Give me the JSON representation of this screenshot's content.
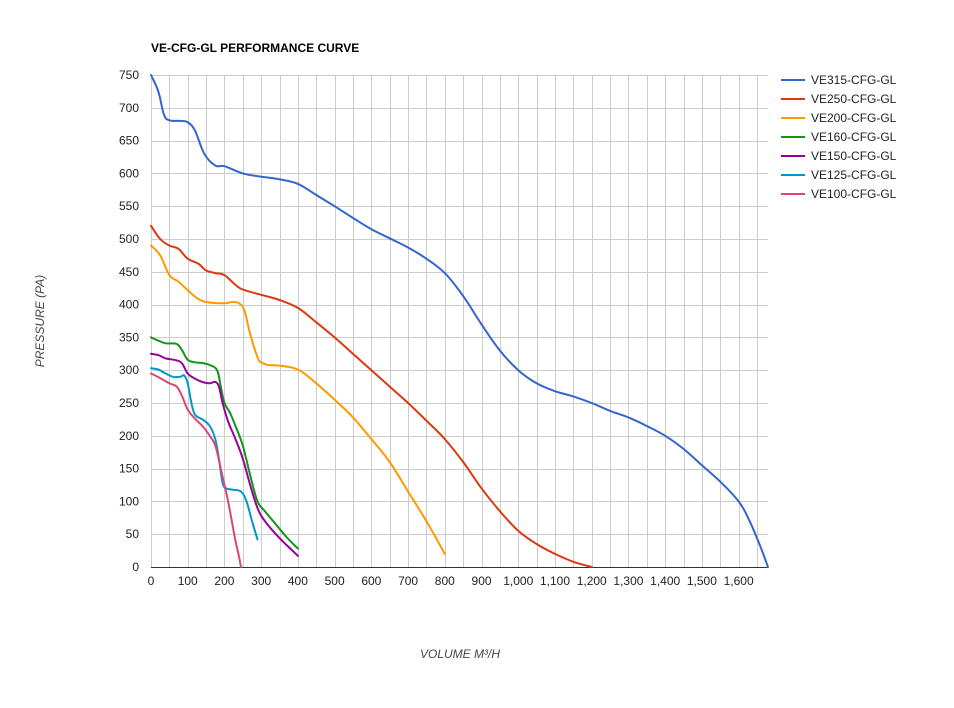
{
  "chart_data": {
    "type": "line",
    "title": "VE-CFG-GL PERFORMANCE CURVE",
    "xlabel": "VOLUME M³/H",
    "ylabel": "PRESSURE (PA)",
    "xlim": [
      0,
      1680
    ],
    "ylim": [
      0,
      750
    ],
    "x_ticks": [
      0,
      100,
      200,
      300,
      400,
      500,
      600,
      700,
      800,
      900,
      1000,
      1100,
      1200,
      1300,
      1400,
      1500,
      1600
    ],
    "x_tick_labels": [
      "0",
      "100",
      "200",
      "300",
      "400",
      "500",
      "600",
      "700",
      "800",
      "900",
      "1,000",
      "1,100",
      "1,200",
      "1,300",
      "1,400",
      "1,500",
      "1,600"
    ],
    "y_ticks": [
      0,
      50,
      100,
      150,
      200,
      250,
      300,
      350,
      400,
      450,
      500,
      550,
      600,
      650,
      700,
      750
    ],
    "y_tick_labels": [
      "0",
      "50",
      "100",
      "150",
      "200",
      "250",
      "300",
      "350",
      "400",
      "450",
      "500",
      "550",
      "600",
      "650",
      "700",
      "750"
    ],
    "grid": true,
    "legend_position": "right",
    "series": [
      {
        "name": "VE315-CFG-GL",
        "color": "#3366cc",
        "points": [
          [
            0,
            750
          ],
          [
            20,
            725
          ],
          [
            35,
            690
          ],
          [
            50,
            681
          ],
          [
            80,
            680
          ],
          [
            100,
            678
          ],
          [
            120,
            665
          ],
          [
            145,
            630
          ],
          [
            175,
            612
          ],
          [
            200,
            611
          ],
          [
            250,
            600
          ],
          [
            300,
            595
          ],
          [
            350,
            591
          ],
          [
            400,
            584
          ],
          [
            450,
            567
          ],
          [
            500,
            550
          ],
          [
            550,
            532
          ],
          [
            600,
            515
          ],
          [
            650,
            501
          ],
          [
            700,
            487
          ],
          [
            750,
            470
          ],
          [
            800,
            448
          ],
          [
            850,
            413
          ],
          [
            900,
            370
          ],
          [
            950,
            330
          ],
          [
            1000,
            300
          ],
          [
            1050,
            280
          ],
          [
            1100,
            268
          ],
          [
            1150,
            260
          ],
          [
            1200,
            250
          ],
          [
            1250,
            238
          ],
          [
            1300,
            228
          ],
          [
            1350,
            215
          ],
          [
            1400,
            200
          ],
          [
            1450,
            180
          ],
          [
            1500,
            155
          ],
          [
            1550,
            130
          ],
          [
            1600,
            100
          ],
          [
            1630,
            70
          ],
          [
            1660,
            30
          ],
          [
            1680,
            0
          ]
        ]
      },
      {
        "name": "VE250-CFG-GL",
        "color": "#dc3912",
        "points": [
          [
            0,
            520
          ],
          [
            25,
            500
          ],
          [
            50,
            490
          ],
          [
            75,
            485
          ],
          [
            100,
            470
          ],
          [
            130,
            462
          ],
          [
            150,
            452
          ],
          [
            175,
            448
          ],
          [
            200,
            445
          ],
          [
            230,
            430
          ],
          [
            250,
            423
          ],
          [
            300,
            415
          ],
          [
            350,
            407
          ],
          [
            400,
            395
          ],
          [
            450,
            373
          ],
          [
            500,
            350
          ],
          [
            550,
            325
          ],
          [
            600,
            300
          ],
          [
            650,
            275
          ],
          [
            700,
            250
          ],
          [
            750,
            223
          ],
          [
            800,
            195
          ],
          [
            850,
            160
          ],
          [
            900,
            120
          ],
          [
            950,
            85
          ],
          [
            1000,
            55
          ],
          [
            1050,
            35
          ],
          [
            1100,
            20
          ],
          [
            1150,
            8
          ],
          [
            1200,
            0
          ]
        ]
      },
      {
        "name": "VE200-CFG-GL",
        "color": "#ff9900",
        "points": [
          [
            0,
            490
          ],
          [
            25,
            475
          ],
          [
            50,
            445
          ],
          [
            75,
            435
          ],
          [
            100,
            422
          ],
          [
            125,
            410
          ],
          [
            150,
            404
          ],
          [
            200,
            402
          ],
          [
            220,
            404
          ],
          [
            240,
            402
          ],
          [
            255,
            390
          ],
          [
            270,
            355
          ],
          [
            290,
            320
          ],
          [
            300,
            312
          ],
          [
            320,
            308
          ],
          [
            350,
            307
          ],
          [
            400,
            301
          ],
          [
            450,
            280
          ],
          [
            500,
            255
          ],
          [
            550,
            228
          ],
          [
            600,
            195
          ],
          [
            650,
            160
          ],
          [
            700,
            115
          ],
          [
            750,
            70
          ],
          [
            800,
            20
          ]
        ]
      },
      {
        "name": "VE160-CFG-GL",
        "color": "#109618",
        "points": [
          [
            0,
            350
          ],
          [
            20,
            345
          ],
          [
            40,
            341
          ],
          [
            70,
            340
          ],
          [
            85,
            330
          ],
          [
            100,
            316
          ],
          [
            120,
            312
          ],
          [
            140,
            311
          ],
          [
            160,
            308
          ],
          [
            180,
            300
          ],
          [
            190,
            275
          ],
          [
            200,
            250
          ],
          [
            215,
            235
          ],
          [
            230,
            215
          ],
          [
            250,
            185
          ],
          [
            270,
            140
          ],
          [
            290,
            100
          ],
          [
            310,
            85
          ],
          [
            340,
            65
          ],
          [
            370,
            45
          ],
          [
            400,
            28
          ]
        ]
      },
      {
        "name": "VE150-CFG-GL",
        "color": "#990099",
        "points": [
          [
            0,
            325
          ],
          [
            20,
            323
          ],
          [
            40,
            318
          ],
          [
            70,
            315
          ],
          [
            85,
            310
          ],
          [
            100,
            295
          ],
          [
            120,
            287
          ],
          [
            140,
            282
          ],
          [
            160,
            280
          ],
          [
            175,
            282
          ],
          [
            185,
            275
          ],
          [
            195,
            250
          ],
          [
            210,
            222
          ],
          [
            230,
            195
          ],
          [
            250,
            165
          ],
          [
            270,
            125
          ],
          [
            290,
            90
          ],
          [
            310,
            70
          ],
          [
            340,
            50
          ],
          [
            370,
            33
          ],
          [
            400,
            17
          ]
        ]
      },
      {
        "name": "VE125-CFG-GL",
        "color": "#0099c6",
        "points": [
          [
            0,
            303
          ],
          [
            20,
            301
          ],
          [
            40,
            295
          ],
          [
            60,
            290
          ],
          [
            80,
            290
          ],
          [
            90,
            292
          ],
          [
            100,
            280
          ],
          [
            110,
            250
          ],
          [
            120,
            232
          ],
          [
            140,
            225
          ],
          [
            160,
            215
          ],
          [
            175,
            195
          ],
          [
            185,
            165
          ],
          [
            195,
            128
          ],
          [
            205,
            120
          ],
          [
            220,
            118
          ],
          [
            245,
            115
          ],
          [
            260,
            100
          ],
          [
            275,
            70
          ],
          [
            290,
            42
          ]
        ]
      },
      {
        "name": "VE100-CFG-GL",
        "color": "#dd4477",
        "points": [
          [
            0,
            295
          ],
          [
            25,
            288
          ],
          [
            50,
            280
          ],
          [
            70,
            275
          ],
          [
            85,
            260
          ],
          [
            100,
            240
          ],
          [
            120,
            226
          ],
          [
            140,
            215
          ],
          [
            160,
            200
          ],
          [
            175,
            185
          ],
          [
            190,
            150
          ],
          [
            200,
            125
          ],
          [
            210,
            100
          ],
          [
            220,
            70
          ],
          [
            230,
            40
          ],
          [
            240,
            15
          ],
          [
            245,
            0
          ]
        ]
      }
    ]
  }
}
